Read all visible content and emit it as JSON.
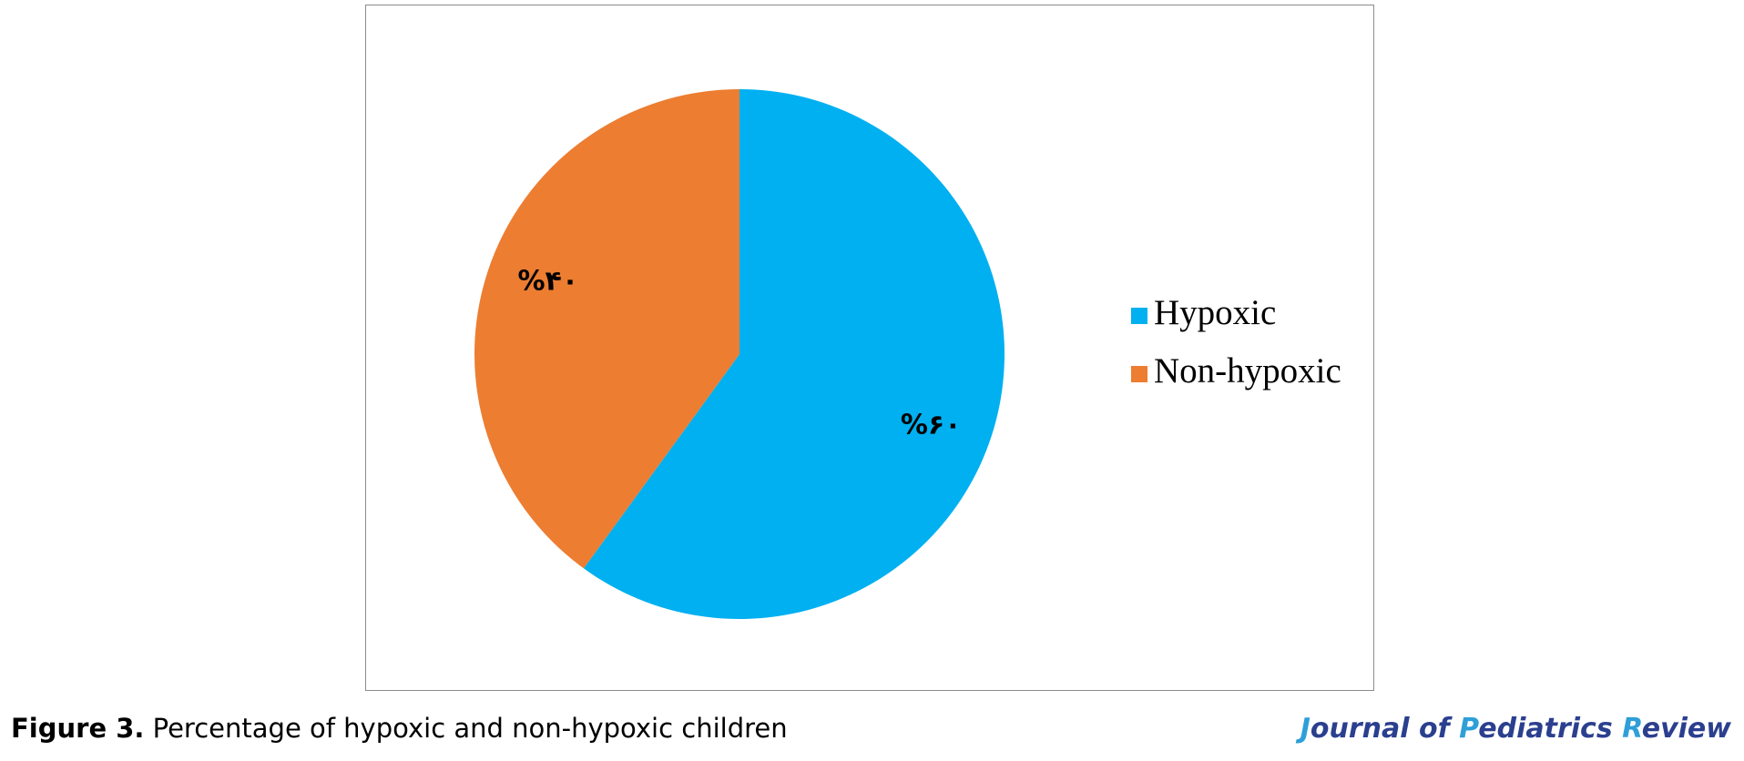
{
  "chart_data": {
    "type": "pie",
    "title": "",
    "slices": [
      {
        "name": "Hypoxic",
        "value": 60,
        "label": "%۶۰",
        "color": "#00b0f0"
      },
      {
        "name": "Non-hypoxic",
        "value": 40,
        "label": "%۴۰",
        "color": "#ed7d31"
      }
    ],
    "legend_position": "right"
  },
  "caption": {
    "label": "Figure 3.",
    "text": " Percentage of hypoxic and non-hypoxic children"
  },
  "journal": {
    "parts": [
      {
        "initial": "J",
        "rest": "ournal of "
      },
      {
        "initial": "P",
        "rest": "ediatrics "
      },
      {
        "initial": "R",
        "rest": "eview"
      }
    ]
  }
}
